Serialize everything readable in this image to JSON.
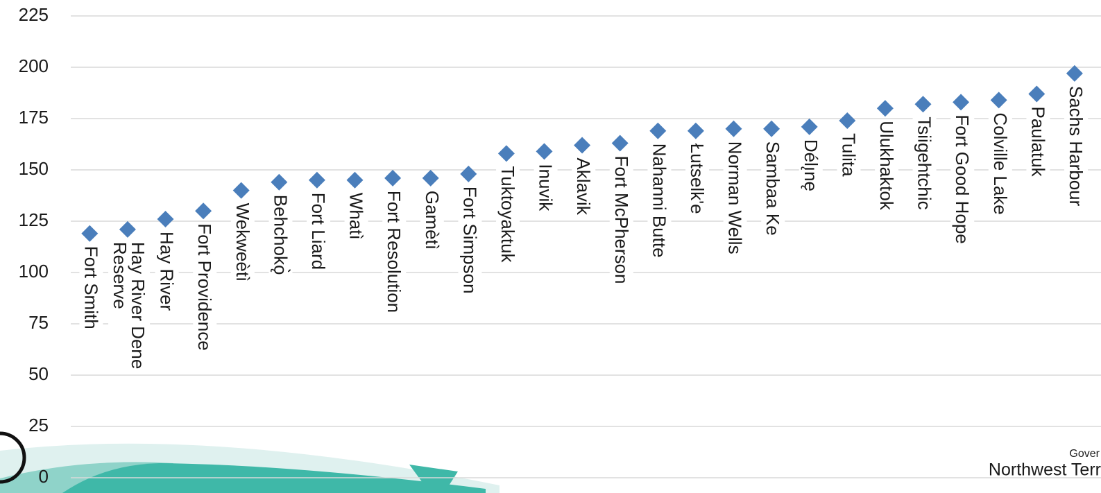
{
  "chart_data": {
    "type": "scatter",
    "marker": "diamond",
    "color": "#4a7ebb",
    "categories": [
      "Fort Smith",
      "Hay River Dene Reserve",
      "Hay River",
      "Fort Providence",
      "Wekweètì",
      "Behchokǫ̀",
      "Fort Liard",
      "Whatì",
      "Fort Resolution",
      "Gamètì",
      "Fort Simpson",
      "Tuktoyaktuk",
      "Inuvik",
      "Aklavik",
      "Fort McPherson",
      "Nahanni Butte",
      "Łutselk'e",
      "Norman Wells",
      "Sambaa Ke",
      "Délı̨nę",
      "Tulita",
      "Ulukhaktok",
      "Tsiigehtchic",
      "Fort Good Hope",
      "Colville Lake",
      "Paulatuk",
      "Sachs Harbour"
    ],
    "values": [
      119,
      121,
      126,
      130,
      140,
      144,
      145,
      145,
      146,
      146,
      148,
      158,
      159,
      162,
      163,
      169,
      169,
      170,
      170,
      171,
      174,
      180,
      182,
      183,
      184,
      187,
      197
    ],
    "ylim": [
      0,
      225
    ],
    "yticks": [
      0,
      25,
      50,
      75,
      100,
      125,
      150,
      175,
      200,
      225
    ],
    "grid": true
  },
  "footer": {
    "line1": "Gover",
    "line2": "Northwest Terr"
  }
}
